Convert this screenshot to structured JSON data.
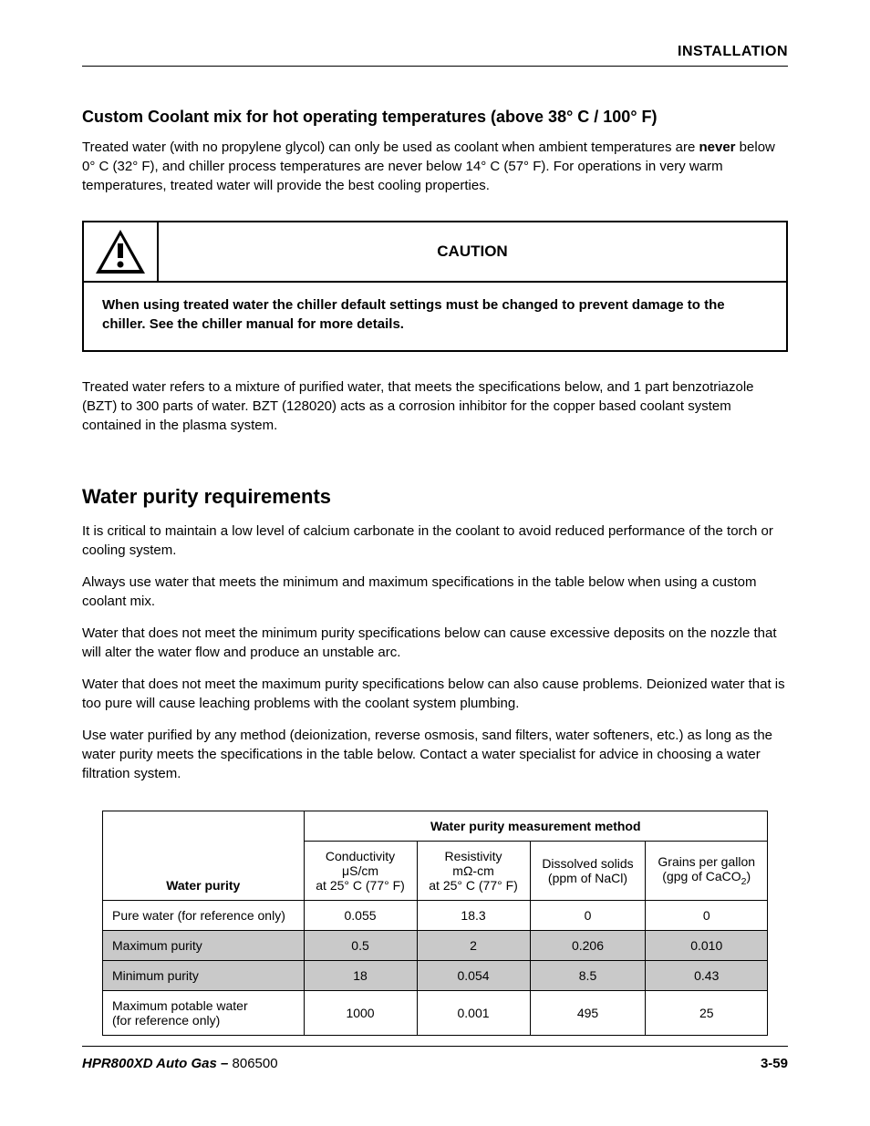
{
  "header": {
    "section": "INSTALLATION"
  },
  "custom_coolant": {
    "title": "Custom Coolant mix for hot operating temperatures (above 38° C / 100° F)",
    "para1_pre": "Treated water (with no propylene glycol) can only be used as coolant when ambient temperatures are ",
    "para1_bold": "never",
    "para1_post": " below 0° C (32° F), and chiller process temperatures are never below 14° C (57° F). For operations in very warm temperatures, treated water will provide the best cooling properties."
  },
  "caution": {
    "label": "CAUTION",
    "text": "When using treated water the chiller default settings must be changed to prevent damage to the chiller. See the chiller manual for more details."
  },
  "treated_water_para": "Treated water refers to a mixture of purified water, that meets the specifications below, and 1 part benzotriazole (BZT) to 300 parts of water. BZT (128020) acts as a corrosion inhibitor for the copper based coolant system contained in the plasma system.",
  "purity": {
    "title": "Water purity requirements",
    "p1": "It is critical to maintain a low level of calcium carbonate in the coolant to avoid reduced performance of the torch or cooling system.",
    "p2": "Always use water that meets the minimum and maximum specifications in the table below when using a custom coolant mix.",
    "p3": "Water that does not meet the minimum purity specifications below can cause excessive deposits on the nozzle that will alter the water flow and produce an unstable arc.",
    "p4": "Water that does not meet the maximum purity specifications below can also cause problems. Deionized water that is too pure will cause leaching problems with the coolant system plumbing.",
    "p5": "Use water purified by any method (deionization, reverse osmosis, sand filters, water softeners, etc.) as long as the water purity meets the specifications in the table below. Contact a water specialist for advice in choosing a water filtration system."
  },
  "table": {
    "span_header": "Water purity measurement method",
    "col_rowheader": "Water purity",
    "cols": {
      "c1l1": "Conductivity",
      "c1l2": "μS/cm",
      "c1l3": "at 25° C (77° F)",
      "c2l1": "Resistivity",
      "c2l2": "mΩ-cm",
      "c2l3": "at 25° C (77° F)",
      "c3l1": "Dissolved solids",
      "c3l2": "(ppm of NaCl)",
      "c4l1": "Grains per gallon",
      "c4l2_pre": "(gpg of CaCO",
      "c4l2_post": ")"
    },
    "rows": [
      {
        "label": "Pure water (for reference only)",
        "v": [
          "0.055",
          "18.3",
          "0",
          "0"
        ],
        "shaded": false
      },
      {
        "label": "Maximum purity",
        "v": [
          "0.5",
          "2",
          "0.206",
          "0.010"
        ],
        "shaded": true
      },
      {
        "label": "Minimum purity",
        "v": [
          "18",
          "0.054",
          "8.5",
          "0.43"
        ],
        "shaded": true
      },
      {
        "label": "Maximum potable water\n(for reference only)",
        "v": [
          "1000",
          "0.001",
          "495",
          "25"
        ],
        "shaded": false
      }
    ]
  },
  "footer": {
    "product": "HPR800XD Auto Gas",
    "sep": " – ",
    "docnum": "806500",
    "page": "3-59"
  },
  "style": {
    "page_bg": "#ffffff",
    "text_color": "#000000",
    "shaded_row": "#c9c9c9",
    "border_color": "#000000"
  }
}
